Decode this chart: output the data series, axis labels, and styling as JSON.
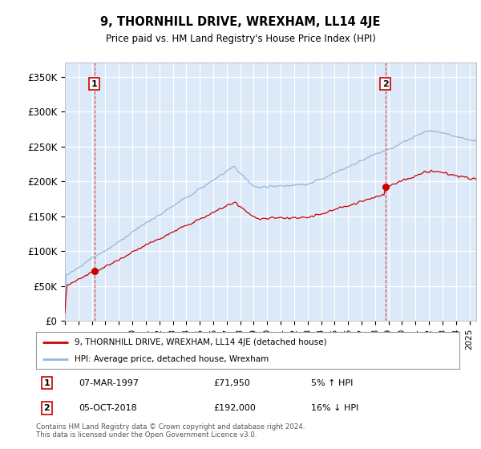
{
  "title": "9, THORNHILL DRIVE, WREXHAM, LL14 4JE",
  "subtitle": "Price paid vs. HM Land Registry's House Price Index (HPI)",
  "ylabel_ticks": [
    "£0",
    "£50K",
    "£100K",
    "£150K",
    "£200K",
    "£250K",
    "£300K",
    "£350K"
  ],
  "ytick_vals": [
    0,
    50000,
    100000,
    150000,
    200000,
    250000,
    300000,
    350000
  ],
  "ylim": [
    0,
    370000
  ],
  "xlim_start": 1995.0,
  "xlim_end": 2025.5,
  "bg_color": "#dce9f8",
  "grid_color": "#ffffff",
  "hpi_color": "#93b8d8",
  "price_color": "#cc0000",
  "sale1_date": 1997.18,
  "sale1_price": 71950,
  "sale2_date": 2018.76,
  "sale2_price": 192000,
  "legend_line1": "9, THORNHILL DRIVE, WREXHAM, LL14 4JE (detached house)",
  "legend_line2": "HPI: Average price, detached house, Wrexham",
  "note1_num": "1",
  "note1_text": "07-MAR-1997",
  "note1_price": "£71,950",
  "note1_hpi": "5% ↑ HPI",
  "note2_num": "2",
  "note2_text": "05-OCT-2018",
  "note2_price": "£192,000",
  "note2_hpi": "16% ↓ HPI",
  "footer": "Contains HM Land Registry data © Crown copyright and database right 2024.\nThis data is licensed under the Open Government Licence v3.0."
}
